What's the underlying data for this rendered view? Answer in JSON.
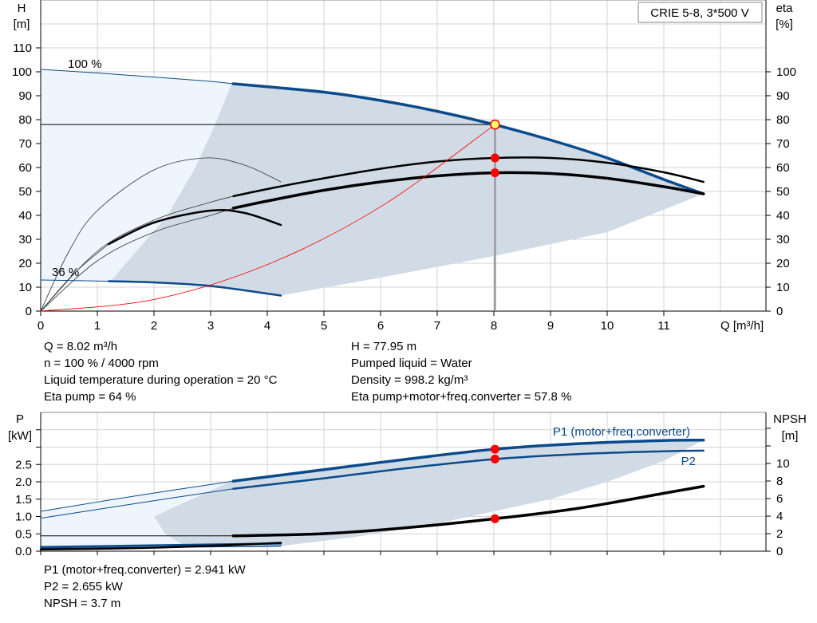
{
  "chart_data": [
    {
      "type": "line",
      "title": "CRIE 5-8, 3*500 V",
      "xlabel": "Q [m³/h]",
      "ylabel": "H\n[m]",
      "y2label": "eta\n[%]",
      "xlim": [
        0,
        12.5
      ],
      "ylim": [
        0,
        130
      ],
      "xticks": [
        0,
        1,
        2,
        3,
        4,
        5,
        6,
        7,
        8,
        9,
        10,
        11
      ],
      "yticks": [
        0,
        10,
        20,
        30,
        40,
        50,
        60,
        70,
        80,
        90,
        100,
        110
      ],
      "y2ticks": [
        0,
        10,
        20,
        30,
        40,
        50,
        60,
        70,
        80,
        90,
        100
      ],
      "grid": true,
      "speed_labels": [
        "100 %",
        "36 %"
      ],
      "series": [
        {
          "id": "H100_thin",
          "x": [
            0,
            1,
            2,
            3,
            3.4
          ],
          "y": [
            101,
            99.5,
            97.8,
            96,
            95
          ]
        },
        {
          "id": "H100",
          "x": [
            3.4,
            5,
            6,
            7,
            8,
            9,
            10,
            11,
            11.7
          ],
          "y": [
            95,
            91.5,
            88,
            83.5,
            78,
            71.5,
            64,
            55,
            49
          ]
        },
        {
          "id": "H36_thin",
          "x": [
            0,
            1.2
          ],
          "y": [
            13,
            12.5
          ]
        },
        {
          "id": "H36",
          "x": [
            1.2,
            2,
            3,
            4.24
          ],
          "y": [
            12.5,
            12,
            10.5,
            6.5
          ]
        },
        {
          "id": "eta_pump",
          "x": [
            3.4,
            4,
            5,
            6,
            7,
            8,
            9,
            10,
            11,
            11.7
          ],
          "y": [
            48,
            51,
            55.5,
            59.5,
            62.5,
            64,
            64,
            62,
            58,
            54
          ]
        },
        {
          "id": "eta_total",
          "x": [
            3.4,
            4,
            5,
            6,
            7,
            8,
            9,
            10,
            11,
            11.7
          ],
          "y": [
            43,
            46,
            50.5,
            54,
            56.5,
            57.8,
            57.5,
            55.5,
            52,
            49
          ]
        },
        {
          "id": "eta_pump_thin",
          "x": [
            0,
            1,
            2,
            3,
            3.4
          ],
          "y": [
            0,
            25,
            38,
            45.5,
            48
          ]
        },
        {
          "id": "eta_total_thin",
          "x": [
            0,
            1,
            2,
            3,
            3.4
          ],
          "y": [
            0,
            21,
            33,
            40,
            43
          ]
        },
        {
          "id": "eta36_total_thin",
          "x": [
            0,
            0.6,
            1.2
          ],
          "y": [
            0,
            16,
            28
          ]
        },
        {
          "id": "eta36_pump_thin",
          "x": [
            0,
            0.5,
            1,
            2,
            2.9,
            3.6,
            4.24
          ],
          "y": [
            0,
            25,
            42,
            59,
            64,
            61,
            54
          ]
        },
        {
          "id": "eta36_total",
          "x": [
            1.2,
            2,
            3,
            3.6,
            4.24
          ],
          "y": [
            28,
            37,
            42,
            41,
            36
          ]
        },
        {
          "id": "system",
          "x": [
            0,
            2,
            4,
            6,
            8.02
          ],
          "y": [
            0,
            4.85,
            19.4,
            43.6,
            77.95
          ]
        }
      ],
      "duty_point": {
        "Q": 8.02,
        "H": 77.95,
        "eta_pump": 64,
        "eta_total": 57.8
      },
      "region_dark": {
        "x": [
          3.4,
          5,
          6,
          7,
          8,
          9,
          10,
          11,
          11.7,
          10,
          8,
          6,
          4.24,
          3,
          2.6,
          2.24,
          1.6,
          1.2,
          1.25,
          2.24,
          2.73,
          3.08,
          3.37
        ],
        "y": [
          95,
          91.5,
          88,
          83.5,
          78,
          71.5,
          64,
          55,
          49,
          33,
          23,
          14,
          6.5,
          10.5,
          11.5,
          12,
          12.3,
          12.5,
          13,
          40,
          60,
          78,
          95
        ]
      },
      "region_light": {
        "x": [
          0,
          1,
          2,
          3,
          3.4,
          3.37,
          3.08,
          2.73,
          2.24,
          1.25,
          1.2,
          0
        ],
        "y": [
          101,
          99.5,
          97.8,
          96,
          95,
          95,
          78,
          60,
          40,
          13,
          12.5,
          13
        ]
      },
      "colors": {
        "H": "#0b4a8b",
        "eta": "#000000",
        "system": "#ff0000",
        "dark_region": "#d0dbe6",
        "light_region": "#eef5fd",
        "duty": "#ff0000"
      }
    },
    {
      "type": "line",
      "xlabel": "",
      "ylabel": "P\n[kW]",
      "y2label": "NPSH\n[m]",
      "xlim": [
        0,
        12.5
      ],
      "ylim": [
        0,
        4
      ],
      "y2lim": [
        0,
        15.8
      ],
      "yticks": [
        "0.0",
        "0.5",
        "1.0",
        "1.5",
        "2.0",
        "2.5"
      ],
      "y2ticks": [
        0,
        2,
        4,
        6,
        8,
        10
      ],
      "grid": true,
      "series": [
        {
          "id": "P1_thin",
          "name": "P1 (motor+freq.converter)",
          "x": [
            0,
            1.7,
            3.4
          ],
          "y": [
            1.15,
            1.6,
            2.02
          ]
        },
        {
          "id": "P1",
          "x": [
            3.4,
            5,
            6.5,
            8.02,
            9.5,
            11,
            11.7
          ],
          "y": [
            2.02,
            2.35,
            2.66,
            2.941,
            3.1,
            3.19,
            3.2
          ]
        },
        {
          "id": "P2_thin",
          "name": "P2",
          "x": [
            0,
            1.7,
            3.4
          ],
          "y": [
            0.95,
            1.38,
            1.8
          ]
        },
        {
          "id": "P2",
          "x": [
            3.4,
            5,
            6.5,
            8.02,
            9.5,
            11,
            11.7
          ],
          "y": [
            1.8,
            2.1,
            2.4,
            2.655,
            2.8,
            2.88,
            2.9
          ]
        },
        {
          "id": "NPSH_thin",
          "axis": "y2",
          "x": [
            0,
            3.4
          ],
          "y": [
            1.75,
            1.75
          ]
        },
        {
          "id": "NPSH",
          "axis": "y2",
          "x": [
            3.4,
            5,
            6.5,
            8.02,
            9.5,
            11,
            11.7
          ],
          "y": [
            1.75,
            2.0,
            2.7,
            3.7,
            4.9,
            6.6,
            7.4
          ]
        },
        {
          "id": "P1_36",
          "x": [
            0,
            1.2,
            4.24
          ],
          "y": [
            0.12,
            0.15,
            0.22
          ]
        },
        {
          "id": "P2_36",
          "x": [
            0,
            1.2,
            4.24
          ],
          "y": [
            0.08,
            0.1,
            0.15
          ]
        },
        {
          "id": "NPSH_36",
          "axis": "y2",
          "x": [
            0,
            1.2,
            2.5,
            4.24
          ],
          "y": [
            0.2,
            0.3,
            0.5,
            0.95
          ]
        }
      ],
      "duty_points": [
        {
          "P": 2.941
        },
        {
          "P": 2.655
        },
        {
          "NPSH": 3.7
        }
      ],
      "region_dark": {
        "x": [
          3.4,
          5,
          6.5,
          8.02,
          9.5,
          11,
          11.7,
          11,
          10,
          9,
          7,
          5.5,
          4.24,
          2.5,
          2.2,
          2.0,
          3.37
        ],
        "y": [
          2.02,
          2.35,
          2.66,
          2.941,
          3.1,
          3.19,
          3.2,
          2.6,
          2.0,
          1.5,
          0.8,
          0.4,
          0.15,
          0.2,
          0.5,
          1.0,
          2.02
        ]
      },
      "region_light": {
        "x": [
          0,
          1.7,
          3.4,
          2.0,
          2.2,
          2.5,
          1.2,
          0
        ],
        "y": [
          1.15,
          1.6,
          2.02,
          1.0,
          0.5,
          0.2,
          0.12,
          0.1
        ]
      }
    }
  ],
  "box_label": "CRIE 5-8, 3*500 V",
  "info_top_left": [
    "Q = 8.02 m³/h",
    "n = 100 % / 4000 rpm",
    "Liquid temperature during operation = 20 °C",
    "Eta pump = 64 %"
  ],
  "info_top_right": [
    "H = 77.95 m",
    "Pumped liquid = Water",
    "Density = 998.2 kg/m³",
    "Eta pump+motor+freq.converter = 57.8 %"
  ],
  "info_bottom": [
    "P1 (motor+freq.converter) = 2.941 kW",
    "P2 = 2.655 kW",
    "NPSH = 3.7 m"
  ],
  "labels": {
    "H": "H",
    "H_unit": "[m]",
    "eta": "eta",
    "eta_unit": "[%]",
    "Q": "Q [m³/h]",
    "P": "P",
    "P_unit": "[kW]",
    "NPSH": "NPSH",
    "NPSH_unit": "[m]",
    "P1": "P1 (motor+freq.converter)",
    "P2": "P2"
  }
}
